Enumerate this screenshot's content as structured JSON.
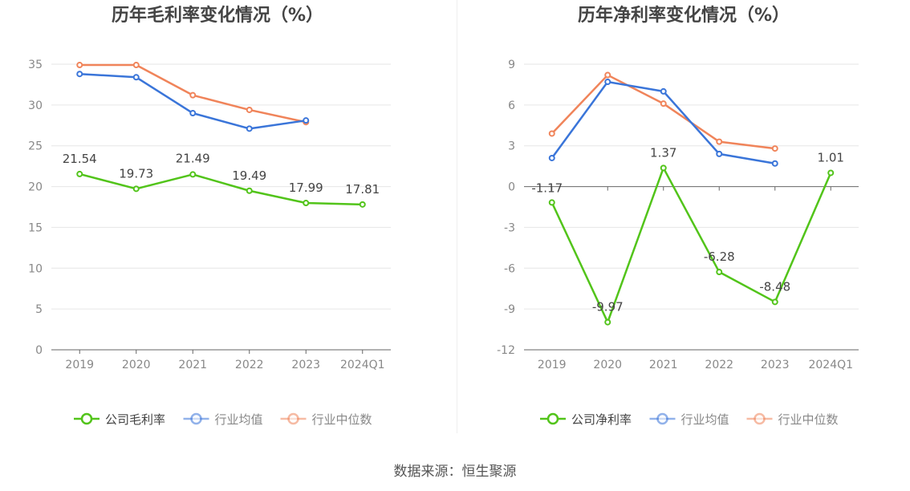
{
  "source_label": "数据来源：恒生聚源",
  "chart_data": [
    {
      "type": "line",
      "title": "历年毛利率变化情况（%）",
      "categories": [
        "2019",
        "2020",
        "2021",
        "2022",
        "2023",
        "2024Q1"
      ],
      "ylim": [
        0,
        35
      ],
      "yticks": [
        0,
        5,
        10,
        15,
        20,
        25,
        30,
        35
      ],
      "xlabel": "",
      "ylabel": "",
      "legend_position": "bottom",
      "series": [
        {
          "name": "公司毛利率",
          "color": "#52c41a",
          "values": [
            21.54,
            19.73,
            21.49,
            19.49,
            17.99,
            17.81
          ],
          "labels": [
            "21.54",
            "19.73",
            "21.49",
            "19.49",
            "17.99",
            "17.81"
          ]
        },
        {
          "name": "行业均值",
          "color": "#3a75d9",
          "values": [
            33.8,
            33.4,
            29.0,
            27.1,
            28.1,
            null
          ],
          "labels": []
        },
        {
          "name": "行业中位数",
          "color": "#f0845a",
          "values": [
            34.9,
            34.9,
            31.2,
            29.4,
            27.9,
            null
          ],
          "labels": []
        }
      ]
    },
    {
      "type": "line",
      "title": "历年净利率变化情况（%）",
      "categories": [
        "2019",
        "2020",
        "2021",
        "2022",
        "2023",
        "2024Q1"
      ],
      "ylim": [
        -12,
        9
      ],
      "yticks": [
        -12,
        -9,
        -6,
        -3,
        0,
        3,
        6,
        9
      ],
      "xlabel": "",
      "ylabel": "",
      "legend_position": "bottom",
      "series": [
        {
          "name": "公司净利率",
          "color": "#52c41a",
          "values": [
            -1.17,
            -9.97,
            1.37,
            -6.28,
            -8.48,
            1.01
          ],
          "labels": [
            "-1.17",
            "-9.97",
            "1.37",
            "-6.28",
            "-8.48",
            "1.01"
          ]
        },
        {
          "name": "行业均值",
          "color": "#3a75d9",
          "values": [
            2.1,
            7.7,
            7.0,
            2.4,
            1.7,
            null
          ],
          "labels": []
        },
        {
          "name": "行业中位数",
          "color": "#f0845a",
          "values": [
            3.9,
            8.2,
            6.1,
            3.3,
            2.8,
            null
          ],
          "labels": []
        }
      ]
    }
  ]
}
